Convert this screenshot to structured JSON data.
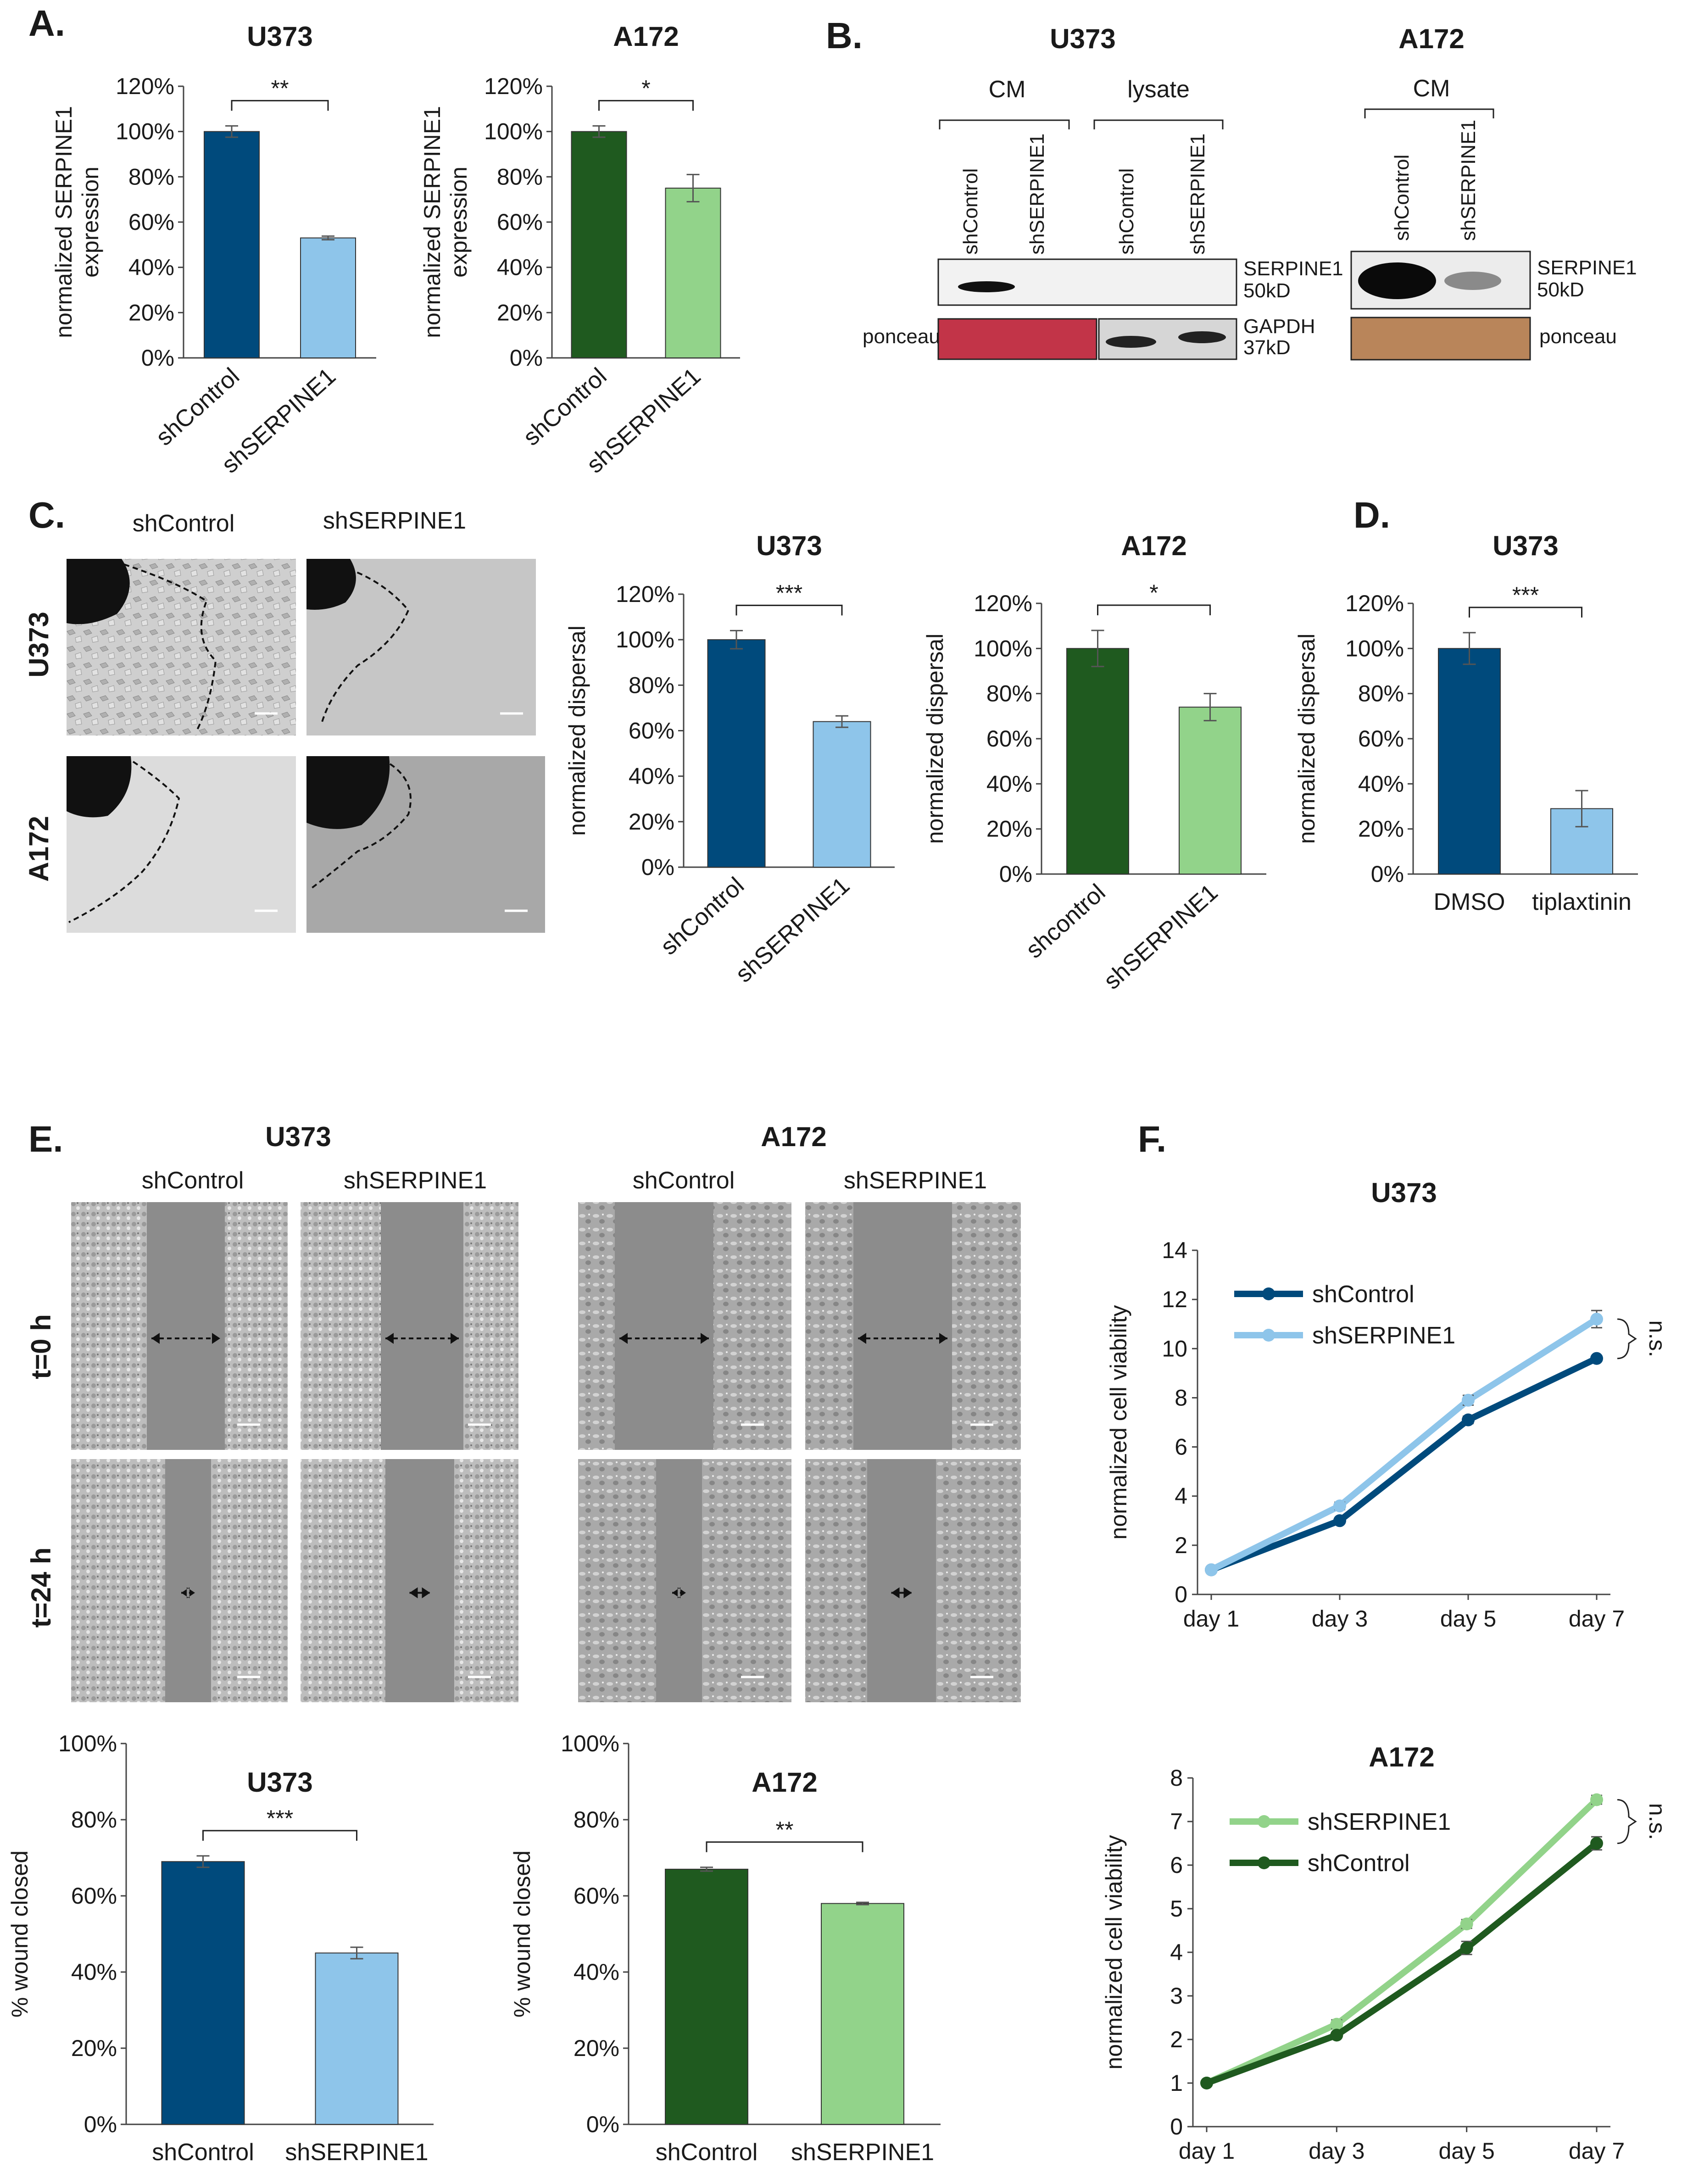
{
  "panels": {
    "A": "A.",
    "B": "B.",
    "C": "C.",
    "D": "D.",
    "E": "E.",
    "F": "F."
  },
  "colors": {
    "u373_control": "#004a7c",
    "u373_knockdown": "#8ec5ea",
    "a172_control": "#1f5a1f",
    "a172_knockdown": "#92d38a"
  },
  "blots": {
    "u373_title": "U373",
    "a172_title": "A172",
    "cm": "CM",
    "lysate": "lysate",
    "lanes": [
      "shControl",
      "shSERPINE1"
    ],
    "serpine_label": "SERPINE1",
    "serpine_kd": "50kD",
    "gapdh_label": "GAPDH",
    "gapdh_kd": "37kD",
    "ponceau": "ponceau"
  },
  "micrographs_c": {
    "cols": [
      "shControl",
      "shSERPINE1"
    ],
    "rows": [
      "U373",
      "A172"
    ]
  },
  "micrographs_e": {
    "u373_title": "U373",
    "a172_title": "A172",
    "cols": [
      "shControl",
      "shSERPINE1"
    ],
    "rows": [
      "t=0 h",
      "t=24 h"
    ]
  },
  "chart_data": [
    {
      "id": "A-U373",
      "type": "bar",
      "title": "U373",
      "ylabel": [
        "normalized SERPINE1",
        "expression"
      ],
      "categories": [
        "shControl",
        "shSERPINE1"
      ],
      "values": [
        100,
        53
      ],
      "errors": [
        2.5,
        0.8
      ],
      "ylim": [
        0,
        120
      ],
      "yticks": [
        "0%",
        "20%",
        "40%",
        "60%",
        "80%",
        "100%",
        "120%"
      ],
      "significance": "**",
      "grid": false
    },
    {
      "id": "A-A172",
      "type": "bar",
      "title": "A172",
      "ylabel": [
        "normalized SERPINE1",
        "expression"
      ],
      "categories": [
        "shControl",
        "shSERPINE1"
      ],
      "values": [
        100,
        75
      ],
      "errors": [
        2.5,
        6
      ],
      "ylim": [
        0,
        120
      ],
      "yticks": [
        "0%",
        "20%",
        "40%",
        "60%",
        "80%",
        "100%",
        "120%"
      ],
      "significance": "*",
      "grid": false
    },
    {
      "id": "C-U373",
      "type": "bar",
      "title": "U373",
      "ylabel": [
        "normalized dispersal"
      ],
      "categories": [
        "shControl",
        "shSERPINE1"
      ],
      "values": [
        100,
        64
      ],
      "errors": [
        4,
        2.5
      ],
      "ylim": [
        0,
        120
      ],
      "yticks": [
        "0%",
        "20%",
        "40%",
        "60%",
        "80%",
        "100%",
        "120%"
      ],
      "significance": "***",
      "grid": false
    },
    {
      "id": "C-A172",
      "type": "bar",
      "title": "A172",
      "ylabel": [
        "normalized dispersal"
      ],
      "categories": [
        "shcontrol",
        "shSERPINE1"
      ],
      "values": [
        100,
        74
      ],
      "errors": [
        8,
        6
      ],
      "ylim": [
        0,
        120
      ],
      "yticks": [
        "0%",
        "20%",
        "40%",
        "60%",
        "80%",
        "100%",
        "120%"
      ],
      "significance": "*",
      "grid": false
    },
    {
      "id": "D-U373",
      "type": "bar",
      "title": "U373",
      "ylabel": [
        "normalized dispersal"
      ],
      "categories": [
        "DMSO",
        "tiplaxtinin"
      ],
      "values": [
        100,
        29
      ],
      "errors": [
        7,
        8
      ],
      "ylim": [
        0,
        120
      ],
      "yticks": [
        "0%",
        "20%",
        "40%",
        "60%",
        "80%",
        "100%",
        "120%"
      ],
      "significance": "***",
      "grid": false
    },
    {
      "id": "E-U373",
      "type": "bar",
      "title": "U373",
      "ylabel": [
        "% wound closed"
      ],
      "categories": [
        "shControl",
        "shSERPINE1"
      ],
      "values": [
        69,
        45
      ],
      "errors": [
        1.5,
        1.5
      ],
      "ylim": [
        0,
        100
      ],
      "yticks": [
        "0%",
        "20%",
        "40%",
        "60%",
        "80%",
        "100%"
      ],
      "significance": "***",
      "grid": false
    },
    {
      "id": "E-A172",
      "type": "bar",
      "title": "A172",
      "ylabel": [
        "% wound closed"
      ],
      "categories": [
        "shControl",
        "shSERPINE1"
      ],
      "values": [
        67,
        58
      ],
      "errors": [
        0.5,
        0.3
      ],
      "ylim": [
        0,
        100
      ],
      "yticks": [
        "0%",
        "20%",
        "40%",
        "60%",
        "80%",
        "100%"
      ],
      "significance": "**",
      "grid": false
    },
    {
      "id": "F-U373",
      "type": "line",
      "title": "U373",
      "ylabel": [
        "normalized cell viability"
      ],
      "x": [
        "day 1",
        "day 3",
        "day 5",
        "day 7"
      ],
      "ylim": [
        0,
        14
      ],
      "yticks": [
        "0",
        "2",
        "4",
        "6",
        "8",
        "10",
        "12",
        "14"
      ],
      "legend_placement": "top-left",
      "series": [
        {
          "name": "shControl",
          "values": [
            1.0,
            3.0,
            7.1,
            9.6
          ],
          "errors": [
            0.05,
            0.1,
            0.15,
            0.1
          ],
          "color": "#004a7c"
        },
        {
          "name": "shSERPINE1",
          "values": [
            1.0,
            3.6,
            7.9,
            11.2
          ],
          "errors": [
            0.05,
            0.15,
            0.2,
            0.35
          ],
          "color": "#8ec5ea"
        }
      ],
      "significance": "n.s."
    },
    {
      "id": "F-A172",
      "type": "line",
      "title": "A172",
      "ylabel": [
        "normalized cell viability"
      ],
      "x": [
        "day 1",
        "day 3",
        "day 5",
        "day 7"
      ],
      "ylim": [
        0,
        8
      ],
      "yticks": [
        "0",
        "1",
        "2",
        "3",
        "4",
        "5",
        "6",
        "7",
        "8"
      ],
      "legend_placement": "top-left",
      "series": [
        {
          "name": "shSERPINE1",
          "values": [
            1.0,
            2.35,
            4.65,
            7.5
          ],
          "errors": [
            0.05,
            0.1,
            0.1,
            0.1
          ],
          "color": "#92d38a"
        },
        {
          "name": "shControl",
          "values": [
            1.0,
            2.1,
            4.1,
            6.5
          ],
          "errors": [
            0.05,
            0.05,
            0.15,
            0.15
          ],
          "color": "#1f5a1f"
        }
      ],
      "significance": "n.s."
    }
  ]
}
